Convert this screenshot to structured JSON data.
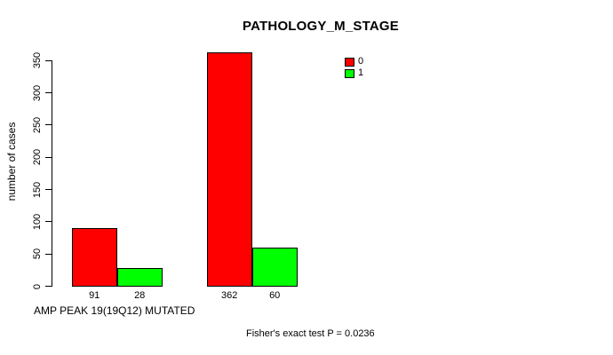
{
  "chart_data": {
    "type": "bar",
    "title": "PATHOLOGY_M_STAGE",
    "ylabel": "number of cases",
    "ylim": [
      0,
      350
    ],
    "yticks": [
      0,
      50,
      100,
      150,
      200,
      250,
      300,
      350
    ],
    "grid": false,
    "legend_position": "top-right",
    "series": [
      {
        "name": "0",
        "color": "#FF0000"
      },
      {
        "name": "1",
        "color": "#00FF00"
      }
    ],
    "groups": [
      {
        "caption": "AMP PEAK 19(19Q12) MUTATED",
        "values": [
          91,
          28
        ]
      },
      {
        "caption": "",
        "values": [
          362,
          60
        ]
      }
    ],
    "bar_value_labels": [
      "91",
      "28",
      "362",
      "60"
    ],
    "annotation": "Fisher's exact test P = 0.0236"
  }
}
